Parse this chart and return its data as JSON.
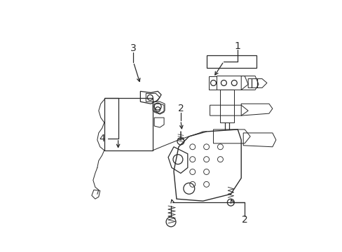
{
  "background_color": "#ffffff",
  "line_color": "#2a2a2a",
  "label_color": "#000000",
  "fig_width": 4.89,
  "fig_height": 3.6,
  "dpi": 100,
  "label_fontsize": 10,
  "lw": 0.9
}
